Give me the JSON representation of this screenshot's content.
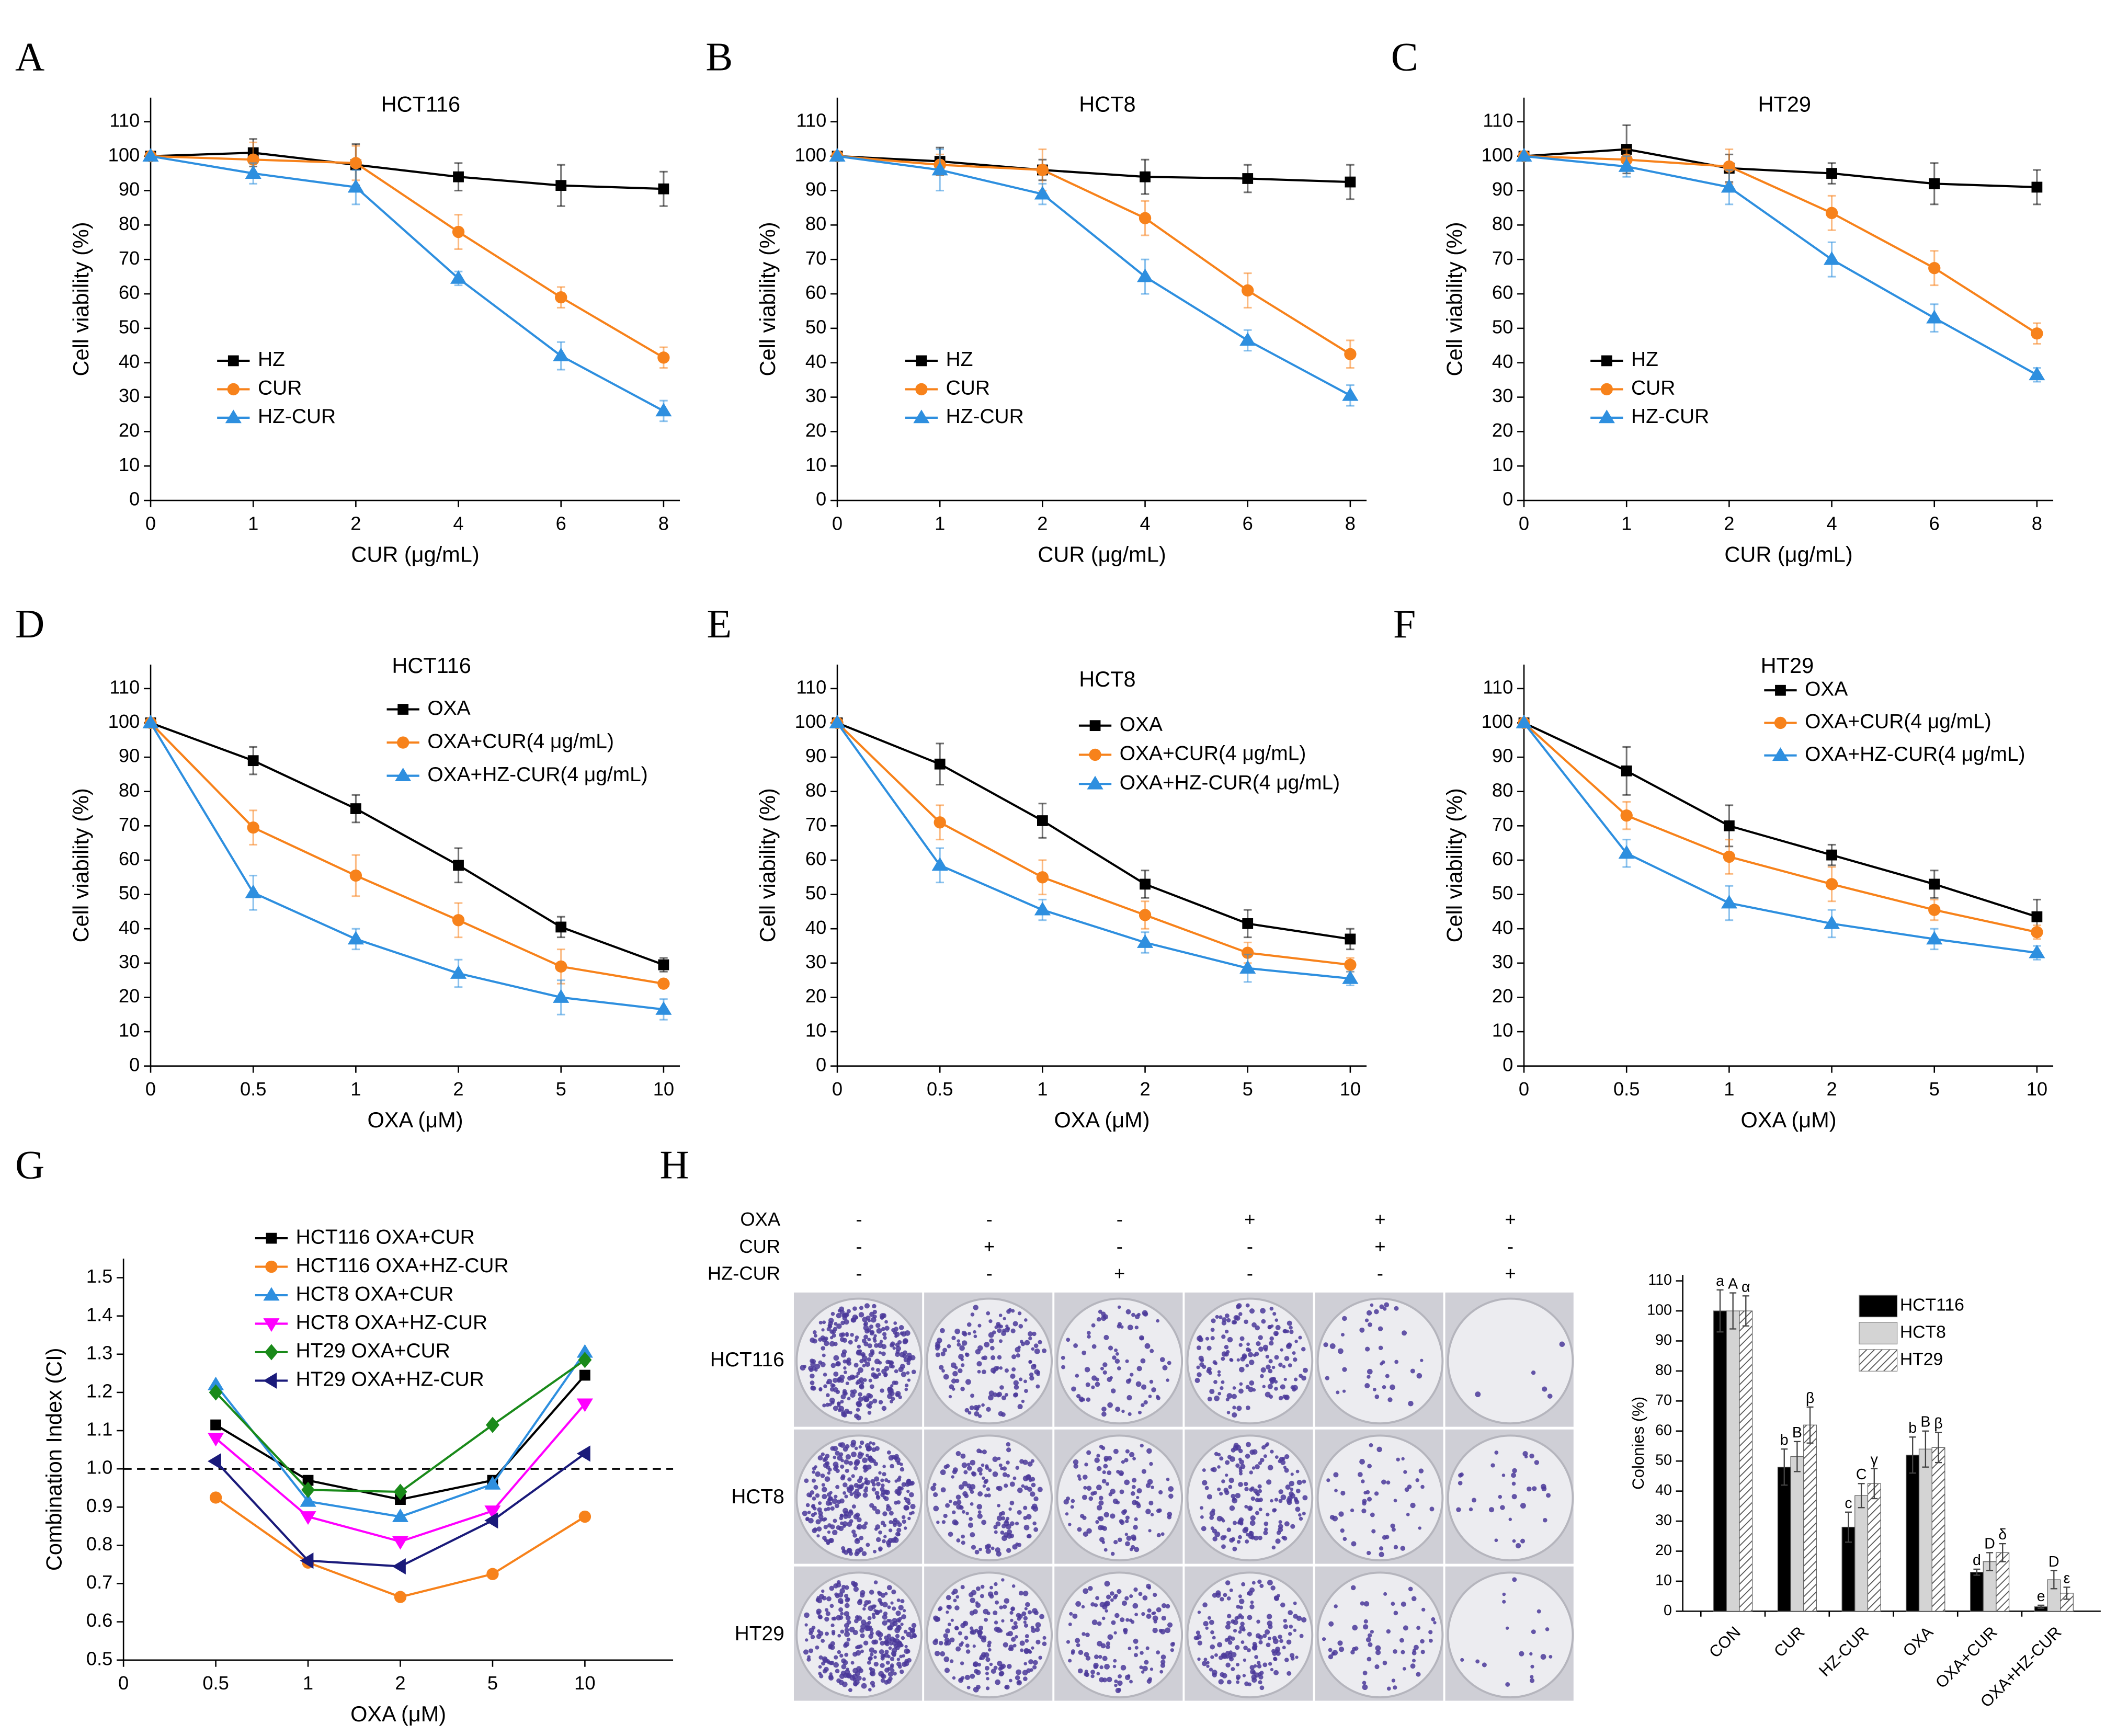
{
  "chart_data": [
    {
      "panel": "A",
      "type": "line",
      "title": "HCT116",
      "x_label": "CUR (μg/mL)",
      "y_label": "Cell viability (%)",
      "categories": [
        "0",
        "1",
        "2",
        "4",
        "6",
        "8"
      ],
      "ylim": [
        0,
        117
      ],
      "yticks": [
        0,
        10,
        20,
        30,
        40,
        50,
        60,
        70,
        80,
        90,
        100,
        110
      ],
      "series": [
        {
          "name": "HZ",
          "color": "#000000",
          "marker": "square",
          "values": [
            100,
            101,
            97.5,
            94,
            91.5,
            90.5
          ],
          "errors": [
            0,
            4,
            6,
            4,
            6,
            5
          ]
        },
        {
          "name": "CUR",
          "color": "#f7821b",
          "marker": "circle",
          "values": [
            100,
            99,
            98,
            78,
            59,
            41.5
          ],
          "errors": [
            0,
            5,
            5,
            5,
            3,
            3
          ]
        },
        {
          "name": "HZ-CUR",
          "color": "#2e8fdf",
          "marker": "triangle-up",
          "values": [
            100,
            95,
            91,
            64.5,
            42,
            26
          ],
          "errors": [
            0,
            3,
            5,
            2,
            4,
            3
          ]
        }
      ]
    },
    {
      "panel": "B",
      "type": "line",
      "title": "HCT8",
      "x_label": "CUR (μg/mL)",
      "y_label": "Cell viability (%)",
      "categories": [
        "0",
        "1",
        "2",
        "4",
        "6",
        "8"
      ],
      "ylim": [
        0,
        117
      ],
      "yticks": [
        0,
        10,
        20,
        30,
        40,
        50,
        60,
        70,
        80,
        90,
        100,
        110
      ],
      "series": [
        {
          "name": "HZ",
          "color": "#000000",
          "marker": "square",
          "values": [
            100,
            98.5,
            96,
            94,
            93.5,
            92.5
          ],
          "errors": [
            0,
            4,
            3,
            5,
            4,
            5
          ]
        },
        {
          "name": "CUR",
          "color": "#f7821b",
          "marker": "circle",
          "values": [
            100,
            97.5,
            96,
            82,
            61,
            42.5
          ],
          "errors": [
            0,
            3,
            6,
            5,
            5,
            4
          ]
        },
        {
          "name": "HZ-CUR",
          "color": "#2e8fdf",
          "marker": "triangle-up",
          "values": [
            100,
            96,
            89,
            65,
            46.5,
            30.5
          ],
          "errors": [
            0,
            6,
            3,
            5,
            3,
            3
          ]
        }
      ]
    },
    {
      "panel": "C",
      "type": "line",
      "title": "HT29",
      "x_label": "CUR (μg/mL)",
      "y_label": "Cell viability (%)",
      "categories": [
        "0",
        "1",
        "2",
        "4",
        "6",
        "8"
      ],
      "ylim": [
        0,
        117
      ],
      "yticks": [
        0,
        10,
        20,
        30,
        40,
        50,
        60,
        70,
        80,
        90,
        100,
        110
      ],
      "series": [
        {
          "name": "HZ",
          "color": "#000000",
          "marker": "square",
          "values": [
            100,
            102,
            96.5,
            95,
            92,
            91
          ],
          "errors": [
            0,
            7,
            4,
            3,
            6,
            5
          ]
        },
        {
          "name": "CUR",
          "color": "#f7821b",
          "marker": "circle",
          "values": [
            100,
            99,
            97,
            83.5,
            67.5,
            48.5
          ],
          "errors": [
            0,
            3,
            5,
            5,
            5,
            3
          ]
        },
        {
          "name": "HZ-CUR",
          "color": "#2e8fdf",
          "marker": "triangle-up",
          "values": [
            100,
            97,
            91,
            70,
            53,
            36.5
          ],
          "errors": [
            0,
            3,
            5,
            5,
            4,
            2
          ]
        }
      ]
    },
    {
      "panel": "D",
      "type": "line",
      "title": "HCT116",
      "x_label": "OXA (μM)",
      "y_label": "Cell viability (%)",
      "categories": [
        "0",
        "0.5",
        "1",
        "2",
        "5",
        "10"
      ],
      "ylim": [
        0,
        117
      ],
      "yticks": [
        0,
        10,
        20,
        30,
        40,
        50,
        60,
        70,
        80,
        90,
        100,
        110
      ],
      "series": [
        {
          "name": "OXA",
          "color": "#000000",
          "marker": "square",
          "values": [
            100,
            89,
            75,
            58.5,
            40.5,
            29.5
          ],
          "errors": [
            0,
            4,
            4,
            5,
            3,
            2
          ]
        },
        {
          "name": "OXA+CUR(4 μg/mL)",
          "color": "#f7821b",
          "marker": "circle",
          "values": [
            100,
            69.5,
            55.5,
            42.5,
            29,
            24
          ],
          "errors": [
            0,
            5,
            6,
            5,
            5,
            1
          ]
        },
        {
          "name": "OXA+HZ-CUR(4 μg/mL)",
          "color": "#2e8fdf",
          "marker": "triangle-up",
          "values": [
            100,
            50.5,
            37,
            27,
            20,
            16.5
          ],
          "errors": [
            0,
            5,
            3,
            4,
            5,
            3
          ]
        }
      ]
    },
    {
      "panel": "E",
      "type": "line",
      "title": "HCT8",
      "x_label": "OXA (μM)",
      "y_label": "Cell viability (%)",
      "categories": [
        "0",
        "0.5",
        "1",
        "2",
        "5",
        "10"
      ],
      "ylim": [
        0,
        117
      ],
      "yticks": [
        0,
        10,
        20,
        30,
        40,
        50,
        60,
        70,
        80,
        90,
        100,
        110
      ],
      "series": [
        {
          "name": "OXA",
          "color": "#000000",
          "marker": "square",
          "values": [
            100,
            88,
            71.5,
            53,
            41.5,
            37
          ],
          "errors": [
            0,
            6,
            5,
            4,
            4,
            3
          ]
        },
        {
          "name": "OXA+CUR(4 μg/mL)",
          "color": "#f7821b",
          "marker": "circle",
          "values": [
            100,
            71,
            55,
            44,
            33,
            29.5
          ],
          "errors": [
            0,
            5,
            5,
            4,
            3,
            2
          ]
        },
        {
          "name": "OXA+HZ-CUR(4 μg/mL)",
          "color": "#2e8fdf",
          "marker": "triangle-up",
          "values": [
            100,
            58.5,
            45.5,
            36,
            28.5,
            25.5
          ],
          "errors": [
            0,
            5,
            3,
            3,
            4,
            2
          ]
        }
      ]
    },
    {
      "panel": "F",
      "type": "line",
      "title": "HT29",
      "x_label": "OXA (μM)",
      "y_label": "Cell viability (%)",
      "categories": [
        "0",
        "0.5",
        "1",
        "2",
        "5",
        "10"
      ],
      "ylim": [
        0,
        117
      ],
      "yticks": [
        0,
        10,
        20,
        30,
        40,
        50,
        60,
        70,
        80,
        90,
        100,
        110
      ],
      "series": [
        {
          "name": "OXA",
          "color": "#000000",
          "marker": "square",
          "values": [
            100,
            86,
            70,
            61.5,
            53,
            43.5
          ],
          "errors": [
            0,
            7,
            6,
            3,
            4,
            5
          ]
        },
        {
          "name": "OXA+CUR(4 μg/mL)",
          "color": "#f7821b",
          "marker": "circle",
          "values": [
            100,
            73,
            61,
            53,
            45.5,
            39
          ],
          "errors": [
            0,
            4,
            5,
            5,
            3,
            2
          ]
        },
        {
          "name": "OXA+HZ-CUR(4 μg/mL)",
          "color": "#2e8fdf",
          "marker": "triangle-up",
          "values": [
            100,
            62,
            47.5,
            41.5,
            37,
            33
          ],
          "errors": [
            0,
            4,
            5,
            4,
            3,
            2
          ]
        }
      ]
    },
    {
      "panel": "G",
      "type": "line",
      "x_label": "OXA (μM)",
      "y_label": "Combination Index (CI)",
      "categories": [
        "0",
        "0.5",
        "1",
        "2",
        "5",
        "10"
      ],
      "ylim": [
        0.5,
        1.55
      ],
      "yticks": [
        0.5,
        0.6,
        0.7,
        0.8,
        0.9,
        {
          "value": 1,
          "label": "1.0"
        },
        1.1,
        1.2,
        1.3,
        1.4,
        1.5
      ],
      "reference_line": 1,
      "series": [
        {
          "name": "HCT116 OXA+CUR",
          "color": "#000000",
          "marker": "square",
          "values": [
            null,
            1.115,
            0.97,
            0.92,
            0.97,
            1.245
          ]
        },
        {
          "name": "HCT116 OXA+HZ-CUR",
          "color": "#f7821b",
          "marker": "circle",
          "values": [
            null,
            0.925,
            0.755,
            0.665,
            0.725,
            0.875
          ]
        },
        {
          "name": "HCT8 OXA+CUR",
          "color": "#2e8fdf",
          "marker": "triangle-up",
          "values": [
            null,
            1.22,
            0.915,
            0.875,
            0.96,
            1.305
          ]
        },
        {
          "name": "HCT8 OXA+HZ-CUR",
          "color": "#ff00ff",
          "marker": "triangle-down",
          "values": [
            null,
            1.08,
            0.875,
            0.81,
            0.89,
            1.17
          ]
        },
        {
          "name": "HT29 OXA+CUR",
          "color": "#1a8a1a",
          "marker": "diamond",
          "values": [
            null,
            1.2,
            0.945,
            0.94,
            1.115,
            1.285
          ]
        },
        {
          "name": "HT29 OXA+HZ-CUR",
          "color": "#1a1a7a",
          "marker": "triangle-left",
          "values": [
            null,
            1.02,
            0.76,
            0.745,
            0.865,
            1.04
          ]
        }
      ]
    },
    {
      "panel": "H",
      "type": "bar",
      "y_label": "Colonies (%)",
      "categories": [
        "CON",
        "CUR",
        "HZ-CUR",
        "OXA",
        "OXA+CUR",
        "OXA+HZ-CUR"
      ],
      "ylim": [
        0,
        112
      ],
      "yticks": [
        0,
        10,
        20,
        30,
        40,
        50,
        60,
        70,
        80,
        90,
        100,
        110
      ],
      "series": [
        {
          "name": "HCT116",
          "color": "#000000",
          "values": [
            100,
            48,
            28,
            52,
            13,
            1.5
          ],
          "errors": [
            7,
            6,
            5,
            6,
            1,
            0.5
          ],
          "letters": [
            "a",
            "b",
            "c",
            "b",
            "d",
            "e"
          ]
        },
        {
          "name": "HCT8",
          "color": "#d4d4d4",
          "values": [
            100,
            51.5,
            38.5,
            54,
            16.5,
            10.5
          ],
          "errors": [
            6,
            5,
            4,
            6,
            3,
            3
          ],
          "letters": [
            "A",
            "B",
            "C",
            "B",
            "D",
            "D"
          ]
        },
        {
          "name": "HT29",
          "color": "#ffffff",
          "pattern": "hatch",
          "values": [
            100,
            62,
            42.5,
            54.5,
            19.5,
            6
          ],
          "errors": [
            5,
            6,
            5,
            5,
            3,
            2
          ],
          "letters": [
            "α",
            "β",
            "γ",
            "β",
            "δ",
            "ε"
          ]
        }
      ]
    }
  ],
  "colony_assay": {
    "treatments": [
      {
        "name": "OXA",
        "signs": [
          "-",
          "-",
          "-",
          "+",
          "+",
          "+"
        ]
      },
      {
        "name": "CUR",
        "signs": [
          "-",
          "+",
          "-",
          "-",
          "+",
          "-"
        ]
      },
      {
        "name": "HZ-CUR",
        "signs": [
          "-",
          "-",
          "+",
          "-",
          "-",
          "+"
        ]
      }
    ],
    "cell_lines": [
      "HCT116",
      "HCT8",
      "HT29"
    ]
  }
}
